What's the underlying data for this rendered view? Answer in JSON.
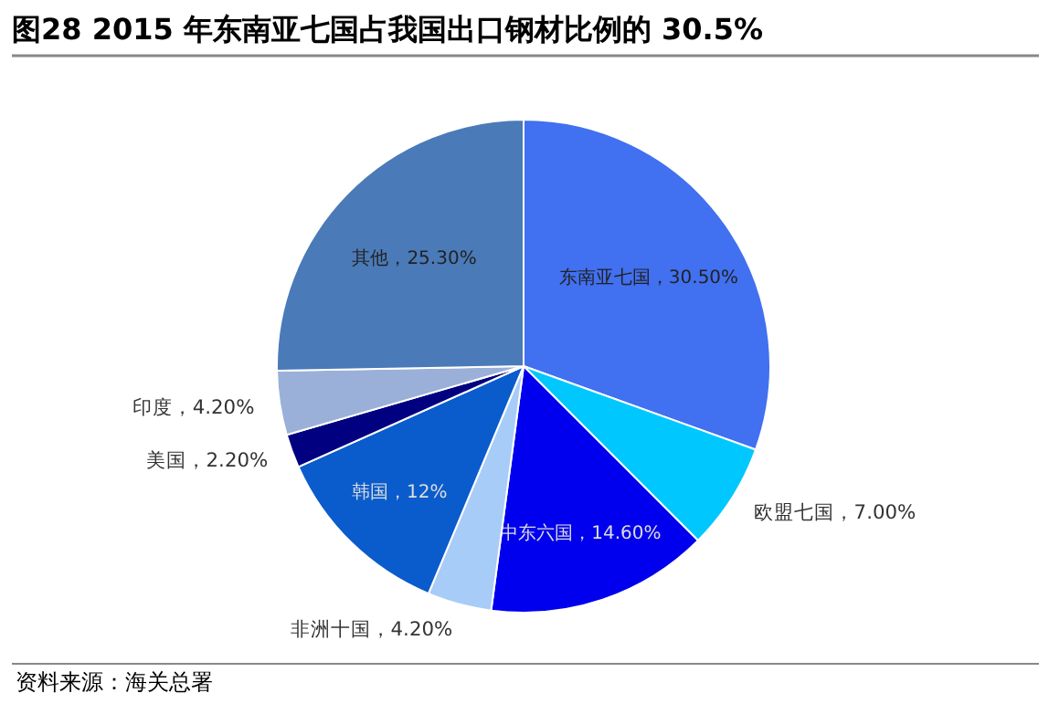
{
  "chart_data": {
    "type": "pie",
    "title": "图28  2015 年东南亚七国占我国出口钢材比例的 30.5%",
    "categories": [
      "东南亚七国",
      "欧盟七国",
      "中东六国",
      "非洲十国",
      "韩国",
      "美国",
      "印度",
      "其他"
    ],
    "values": [
      30.5,
      7.0,
      14.6,
      4.2,
      12,
      2.2,
      4.2,
      25.3
    ],
    "value_labels": [
      "30.50%",
      "7.00%",
      "14.60%",
      "4.20%",
      "12%",
      "2.20%",
      "4.20%",
      "25.30%"
    ],
    "colors": [
      "#4170f0",
      "#00c8ff",
      "#0000ee",
      "#a8ccf8",
      "#0a5ccc",
      "#000080",
      "#9ab0d8",
      "#4a7ab8"
    ],
    "annotations": [
      "资料来源：海关总署"
    ]
  }
}
